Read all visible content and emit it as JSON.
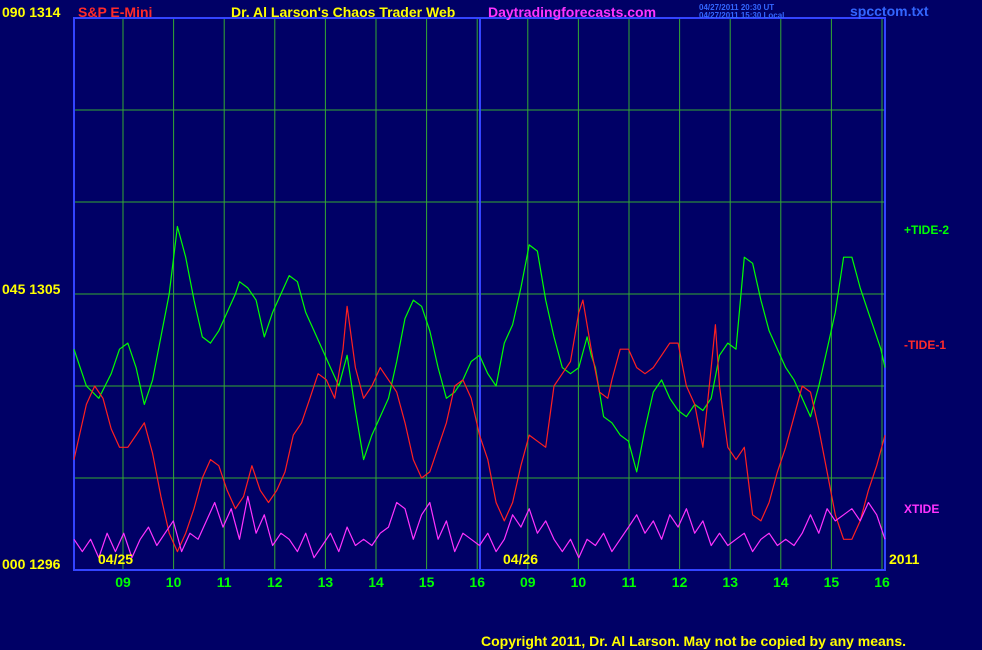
{
  "header": {
    "price_top": "090  1314",
    "symbol": "S&P E-Mini",
    "title": "Dr. Al Larson's Chaos Trader Web",
    "site": "Daytradingforecasts.com",
    "stamp_utc": "04/27/2011 20:30 UT",
    "stamp_local": "04/27/2011 15:30 Local",
    "filename": "spcctom.txt"
  },
  "left_axis": {
    "top": "090  1314",
    "mid": "045  1305",
    "bottom": "000  1296"
  },
  "footer": {
    "copyright": "Copyright 2011, Dr. Al Larson. May not be copied by any means.",
    "year": "2011"
  },
  "colors": {
    "background": "#000066",
    "frame": "#3344ff",
    "grid": "#33aa33",
    "tide2": "#00ff00",
    "tide1": "#ff2020",
    "xtide": "#ff33ff",
    "axis_labels": "#ffff00"
  },
  "chart_data": {
    "type": "line",
    "ylim": [
      0,
      90
    ],
    "x_ticks": [
      "09",
      "10",
      "11",
      "12",
      "13",
      "14",
      "15",
      "16",
      "09",
      "10",
      "11",
      "12",
      "13",
      "14",
      "15",
      "16"
    ],
    "date_labels": [
      "04/25",
      "04/26"
    ],
    "series": [
      {
        "name": "+TIDE-2",
        "values": [
          [
            0.0,
            36
          ],
          [
            0.3,
            30
          ],
          [
            0.6,
            28
          ],
          [
            0.9,
            32
          ],
          [
            1.1,
            36
          ],
          [
            1.3,
            37
          ],
          [
            1.5,
            33
          ],
          [
            1.7,
            27
          ],
          [
            1.9,
            31
          ],
          [
            2.1,
            38
          ],
          [
            2.3,
            45
          ],
          [
            2.5,
            56
          ],
          [
            2.7,
            51
          ],
          [
            2.9,
            44
          ],
          [
            3.1,
            38
          ],
          [
            3.3,
            37
          ],
          [
            3.5,
            39
          ],
          [
            3.7,
            42
          ],
          [
            3.9,
            45
          ],
          [
            4.0,
            47
          ],
          [
            4.2,
            46
          ],
          [
            4.4,
            44
          ],
          [
            4.6,
            38
          ],
          [
            4.8,
            42
          ],
          [
            5.0,
            45
          ],
          [
            5.2,
            48
          ],
          [
            5.4,
            47
          ],
          [
            5.6,
            42
          ],
          [
            5.8,
            39
          ],
          [
            6.0,
            36
          ],
          [
            6.2,
            33
          ],
          [
            6.4,
            30
          ],
          [
            6.6,
            35
          ],
          [
            6.8,
            26
          ],
          [
            7.0,
            18
          ],
          [
            7.2,
            22
          ],
          [
            7.4,
            25
          ],
          [
            7.6,
            28
          ],
          [
            7.8,
            34
          ],
          [
            8.0,
            41
          ],
          [
            8.2,
            44
          ],
          [
            8.4,
            43
          ],
          [
            8.6,
            39
          ],
          [
            8.8,
            33
          ],
          [
            9.0,
            28
          ],
          [
            9.2,
            29
          ],
          [
            9.4,
            31
          ],
          [
            9.6,
            34
          ],
          [
            9.8,
            35
          ],
          [
            10.0,
            32
          ],
          [
            10.2,
            30
          ],
          [
            10.4,
            37
          ],
          [
            10.6,
            40
          ],
          [
            10.8,
            46
          ],
          [
            11.0,
            53
          ],
          [
            11.2,
            52
          ],
          [
            11.4,
            44
          ],
          [
            11.6,
            38
          ],
          [
            11.8,
            33
          ],
          [
            12.0,
            32
          ],
          [
            12.2,
            33
          ],
          [
            12.4,
            38
          ],
          [
            12.5,
            35
          ],
          [
            12.6,
            33
          ],
          [
            12.8,
            25
          ],
          [
            13.0,
            24
          ],
          [
            13.2,
            22
          ],
          [
            13.4,
            21
          ],
          [
            13.6,
            16
          ],
          [
            13.8,
            23
          ],
          [
            14.0,
            29
          ],
          [
            14.2,
            31
          ],
          [
            14.4,
            28
          ],
          [
            14.6,
            26
          ],
          [
            14.8,
            25
          ],
          [
            15.0,
            27
          ],
          [
            15.2,
            26
          ],
          [
            15.4,
            28
          ],
          [
            15.6,
            35
          ],
          [
            15.8,
            37
          ],
          [
            16.0,
            36
          ],
          [
            16.2,
            51
          ],
          [
            16.4,
            50
          ],
          [
            16.6,
            44
          ],
          [
            16.8,
            39
          ],
          [
            17.0,
            36
          ],
          [
            17.2,
            33
          ],
          [
            17.4,
            31
          ],
          [
            17.6,
            28
          ],
          [
            17.8,
            25
          ],
          [
            18.0,
            30
          ],
          [
            18.2,
            36
          ],
          [
            18.4,
            42
          ],
          [
            18.6,
            51
          ],
          [
            18.8,
            51
          ],
          [
            19.0,
            46
          ],
          [
            19.2,
            42
          ],
          [
            19.3,
            40
          ],
          [
            19.5,
            36
          ],
          [
            19.6,
            33
          ]
        ]
      },
      {
        "name": "-TIDE-1",
        "values": [
          [
            0.0,
            18
          ],
          [
            0.3,
            27
          ],
          [
            0.5,
            30
          ],
          [
            0.7,
            28
          ],
          [
            0.9,
            23
          ],
          [
            1.1,
            20
          ],
          [
            1.3,
            20
          ],
          [
            1.5,
            22
          ],
          [
            1.7,
            24
          ],
          [
            1.9,
            19
          ],
          [
            2.1,
            12
          ],
          [
            2.3,
            6
          ],
          [
            2.5,
            3
          ],
          [
            2.7,
            6
          ],
          [
            2.9,
            10
          ],
          [
            3.1,
            15
          ],
          [
            3.3,
            18
          ],
          [
            3.5,
            17
          ],
          [
            3.7,
            13
          ],
          [
            3.9,
            10
          ],
          [
            4.1,
            12
          ],
          [
            4.3,
            17
          ],
          [
            4.5,
            13
          ],
          [
            4.7,
            11
          ],
          [
            4.9,
            13
          ],
          [
            5.1,
            16
          ],
          [
            5.3,
            22
          ],
          [
            5.5,
            24
          ],
          [
            5.7,
            28
          ],
          [
            5.9,
            32
          ],
          [
            6.1,
            31
          ],
          [
            6.3,
            28
          ],
          [
            6.5,
            36
          ],
          [
            6.6,
            43
          ],
          [
            6.8,
            33
          ],
          [
            7.0,
            28
          ],
          [
            7.2,
            30
          ],
          [
            7.4,
            33
          ],
          [
            7.6,
            31
          ],
          [
            7.8,
            29
          ],
          [
            8.0,
            24
          ],
          [
            8.2,
            18
          ],
          [
            8.4,
            15
          ],
          [
            8.6,
            16
          ],
          [
            8.8,
            20
          ],
          [
            9.0,
            24
          ],
          [
            9.2,
            30
          ],
          [
            9.4,
            31
          ],
          [
            9.6,
            28
          ],
          [
            9.8,
            22
          ],
          [
            10.0,
            18
          ],
          [
            10.2,
            11
          ],
          [
            10.4,
            8
          ],
          [
            10.6,
            11
          ],
          [
            10.8,
            17
          ],
          [
            11.0,
            22
          ],
          [
            11.2,
            21
          ],
          [
            11.4,
            20
          ],
          [
            11.6,
            30
          ],
          [
            11.8,
            32
          ],
          [
            12.0,
            34
          ],
          [
            12.2,
            42
          ],
          [
            12.3,
            44
          ],
          [
            12.5,
            36
          ],
          [
            12.7,
            29
          ],
          [
            12.9,
            28
          ],
          [
            13.0,
            31
          ],
          [
            13.2,
            36
          ],
          [
            13.4,
            36
          ],
          [
            13.6,
            33
          ],
          [
            13.8,
            32
          ],
          [
            14.0,
            33
          ],
          [
            14.2,
            35
          ],
          [
            14.4,
            37
          ],
          [
            14.6,
            37
          ],
          [
            14.8,
            30
          ],
          [
            15.0,
            27
          ],
          [
            15.2,
            20
          ],
          [
            15.4,
            33
          ],
          [
            15.5,
            40
          ],
          [
            15.6,
            30
          ],
          [
            15.8,
            20
          ],
          [
            16.0,
            18
          ],
          [
            16.2,
            20
          ],
          [
            16.4,
            9
          ],
          [
            16.6,
            8
          ],
          [
            16.8,
            11
          ],
          [
            17.0,
            16
          ],
          [
            17.2,
            20
          ],
          [
            17.4,
            25
          ],
          [
            17.6,
            30
          ],
          [
            17.8,
            29
          ],
          [
            18.0,
            23
          ],
          [
            18.2,
            16
          ],
          [
            18.4,
            9
          ],
          [
            18.6,
            5
          ],
          [
            18.8,
            5
          ],
          [
            19.0,
            8
          ],
          [
            19.2,
            13
          ],
          [
            19.4,
            17
          ],
          [
            19.6,
            22
          ]
        ]
      },
      {
        "name": "XTIDE",
        "values": [
          [
            0.0,
            5
          ],
          [
            0.2,
            3
          ],
          [
            0.4,
            5
          ],
          [
            0.6,
            2
          ],
          [
            0.8,
            6
          ],
          [
            1.0,
            3
          ],
          [
            1.2,
            6
          ],
          [
            1.4,
            2
          ],
          [
            1.6,
            5
          ],
          [
            1.8,
            7
          ],
          [
            2.0,
            4
          ],
          [
            2.2,
            6
          ],
          [
            2.4,
            8
          ],
          [
            2.6,
            3
          ],
          [
            2.8,
            6
          ],
          [
            3.0,
            5
          ],
          [
            3.2,
            8
          ],
          [
            3.4,
            11
          ],
          [
            3.6,
            7
          ],
          [
            3.8,
            10
          ],
          [
            4.0,
            5
          ],
          [
            4.2,
            12
          ],
          [
            4.4,
            6
          ],
          [
            4.6,
            9
          ],
          [
            4.8,
            4
          ],
          [
            5.0,
            6
          ],
          [
            5.2,
            5
          ],
          [
            5.4,
            3
          ],
          [
            5.6,
            6
          ],
          [
            5.8,
            2
          ],
          [
            6.0,
            4
          ],
          [
            6.2,
            6
          ],
          [
            6.4,
            3
          ],
          [
            6.6,
            7
          ],
          [
            6.8,
            4
          ],
          [
            7.0,
            5
          ],
          [
            7.2,
            4
          ],
          [
            7.4,
            6
          ],
          [
            7.6,
            7
          ],
          [
            7.8,
            11
          ],
          [
            8.0,
            10
          ],
          [
            8.2,
            5
          ],
          [
            8.4,
            9
          ],
          [
            8.6,
            11
          ],
          [
            8.8,
            5
          ],
          [
            9.0,
            8
          ],
          [
            9.2,
            3
          ],
          [
            9.4,
            6
          ],
          [
            9.6,
            5
          ],
          [
            9.8,
            4
          ],
          [
            10.0,
            6
          ],
          [
            10.2,
            3
          ],
          [
            10.4,
            5
          ],
          [
            10.6,
            9
          ],
          [
            10.8,
            7
          ],
          [
            11.0,
            10
          ],
          [
            11.2,
            6
          ],
          [
            11.4,
            8
          ],
          [
            11.6,
            5
          ],
          [
            11.8,
            3
          ],
          [
            12.0,
            5
          ],
          [
            12.2,
            2
          ],
          [
            12.4,
            5
          ],
          [
            12.6,
            4
          ],
          [
            12.8,
            6
          ],
          [
            13.0,
            3
          ],
          [
            13.2,
            5
          ],
          [
            13.4,
            7
          ],
          [
            13.6,
            9
          ],
          [
            13.8,
            6
          ],
          [
            14.0,
            8
          ],
          [
            14.2,
            5
          ],
          [
            14.4,
            9
          ],
          [
            14.6,
            7
          ],
          [
            14.8,
            10
          ],
          [
            15.0,
            6
          ],
          [
            15.2,
            8
          ],
          [
            15.4,
            4
          ],
          [
            15.6,
            6
          ],
          [
            15.8,
            4
          ],
          [
            16.0,
            5
          ],
          [
            16.2,
            6
          ],
          [
            16.4,
            3
          ],
          [
            16.6,
            5
          ],
          [
            16.8,
            6
          ],
          [
            17.0,
            4
          ],
          [
            17.2,
            5
          ],
          [
            17.4,
            4
          ],
          [
            17.6,
            6
          ],
          [
            17.8,
            9
          ],
          [
            18.0,
            6
          ],
          [
            18.2,
            10
          ],
          [
            18.4,
            8
          ],
          [
            18.6,
            9
          ],
          [
            18.8,
            10
          ],
          [
            19.0,
            8
          ],
          [
            19.2,
            11
          ],
          [
            19.4,
            9
          ],
          [
            19.6,
            5
          ]
        ]
      }
    ]
  }
}
